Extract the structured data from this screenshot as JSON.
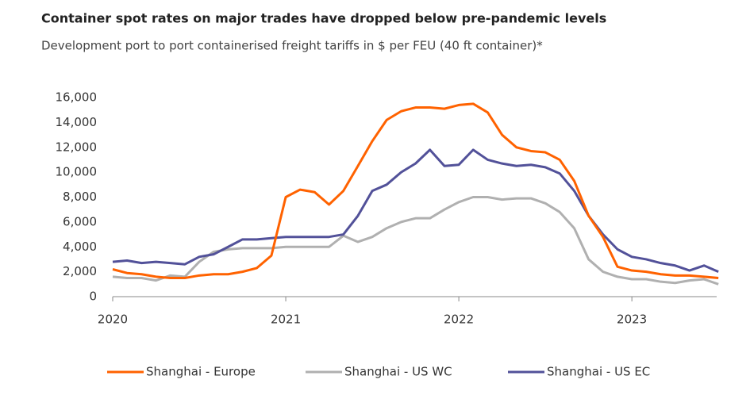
{
  "chart_data": {
    "type": "line",
    "title": "Container spot rates on major trades have dropped below pre-pandemic levels",
    "subtitle": "Development port to port containerised freight tariffs in $ per FEU (40 ft container)*",
    "x": [
      2020.0,
      2020.083,
      2020.167,
      2020.25,
      2020.333,
      2020.417,
      2020.5,
      2020.583,
      2020.667,
      2020.75,
      2020.833,
      2020.917,
      2021.0,
      2021.083,
      2021.167,
      2021.25,
      2021.333,
      2021.417,
      2021.5,
      2021.583,
      2021.667,
      2021.75,
      2021.833,
      2021.917,
      2022.0,
      2022.083,
      2022.167,
      2022.25,
      2022.333,
      2022.417,
      2022.5,
      2022.583,
      2022.667,
      2022.75,
      2022.833,
      2022.917,
      2023.0,
      2023.083,
      2023.167,
      2023.25,
      2023.333,
      2023.417,
      2023.5
    ],
    "series": [
      {
        "name": "Shanghai - Europe",
        "color": "#ff6200",
        "values": [
          2200,
          1900,
          1800,
          1600,
          1500,
          1500,
          1700,
          1800,
          1800,
          2000,
          2300,
          3300,
          8000,
          8600,
          8400,
          7400,
          8500,
          10500,
          12500,
          14200,
          14900,
          15200,
          15200,
          15100,
          15400,
          15500,
          14800,
          13000,
          12000,
          11700,
          11600,
          11000,
          9300,
          6500,
          4800,
          2400,
          2100,
          2000,
          1800,
          1700,
          1700,
          1600,
          1500
        ]
      },
      {
        "name": "Shanghai - US WC",
        "color": "#b0b0b0",
        "values": [
          1600,
          1500,
          1500,
          1300,
          1700,
          1600,
          2800,
          3600,
          3800,
          3900,
          3900,
          3900,
          4000,
          4000,
          4000,
          4000,
          4900,
          4400,
          4800,
          5500,
          6000,
          6300,
          6300,
          7000,
          7600,
          8000,
          8000,
          7800,
          7900,
          7900,
          7500,
          6800,
          5500,
          3000,
          2000,
          1600,
          1400,
          1400,
          1200,
          1100,
          1300,
          1400,
          1000
        ]
      },
      {
        "name": "Shanghai - US EC",
        "color": "#525199",
        "values": [
          2800,
          2900,
          2700,
          2800,
          2700,
          2600,
          3200,
          3400,
          4000,
          4600,
          4600,
          4700,
          4800,
          4800,
          4800,
          4800,
          5000,
          6500,
          8500,
          9000,
          10000,
          10700,
          11800,
          10500,
          10600,
          11800,
          11000,
          10700,
          10500,
          10600,
          10400,
          9900,
          8500,
          6500,
          5000,
          3800,
          3200,
          3000,
          2700,
          2500,
          2100,
          2500,
          2000
        ]
      }
    ],
    "xlim": [
      2020,
      2023.49
    ],
    "xticks": [
      2020,
      2021,
      2022,
      2023
    ],
    "ylim": [
      0,
      16000
    ],
    "yticks": [
      0,
      {
        "value": 2000,
        "label": "2,000"
      },
      {
        "value": 4000,
        "label": "4,000"
      },
      {
        "value": 6000,
        "label": "6,000"
      },
      {
        "value": 8000,
        "label": "8,000"
      },
      {
        "value": 10000,
        "label": "10,000"
      },
      {
        "value": 12000,
        "label": "12,000"
      },
      {
        "value": 14000,
        "label": "14,000"
      },
      {
        "value": 16000,
        "label": "16,000"
      }
    ],
    "grid": false
  }
}
